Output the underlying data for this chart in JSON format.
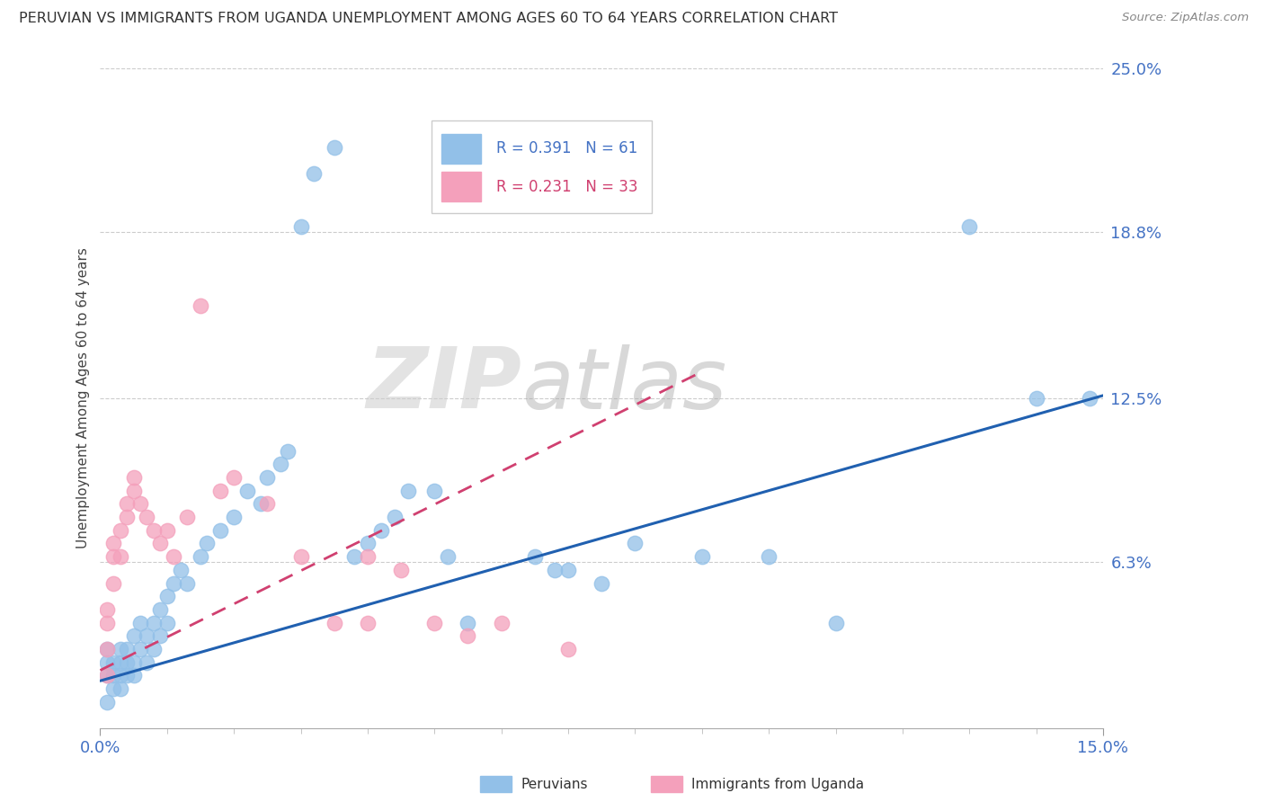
{
  "title": "PERUVIAN VS IMMIGRANTS FROM UGANDA UNEMPLOYMENT AMONG AGES 60 TO 64 YEARS CORRELATION CHART",
  "source": "Source: ZipAtlas.com",
  "ylabel": "Unemployment Among Ages 60 to 64 years",
  "xlim": [
    0,
    0.15
  ],
  "ylim": [
    0,
    0.25
  ],
  "ytick_labels_right": [
    "6.3%",
    "12.5%",
    "18.8%",
    "25.0%"
  ],
  "ytick_vals_right": [
    0.063,
    0.125,
    0.188,
    0.25
  ],
  "legend_blue_r": "R = 0.391",
  "legend_blue_n": "N = 61",
  "legend_pink_r": "R = 0.231",
  "legend_pink_n": "N = 33",
  "label_blue": "Peruvians",
  "label_pink": "Immigrants from Uganda",
  "blue_color": "#92C0E8",
  "pink_color": "#F4A0BB",
  "trend_blue_color": "#2060B0",
  "trend_pink_color": "#D04070",
  "watermark_zip": "ZIP",
  "watermark_atlas": "atlas",
  "blue_trend_x0": 0.0,
  "blue_trend_y0": 0.018,
  "blue_trend_x1": 0.15,
  "blue_trend_y1": 0.126,
  "pink_trend_x0": 0.0,
  "pink_trend_y0": 0.022,
  "pink_trend_x1": 0.09,
  "pink_trend_y1": 0.135,
  "blue_scatter_x": [
    0.001,
    0.001,
    0.001,
    0.001,
    0.002,
    0.002,
    0.002,
    0.003,
    0.003,
    0.003,
    0.003,
    0.004,
    0.004,
    0.004,
    0.005,
    0.005,
    0.005,
    0.006,
    0.006,
    0.007,
    0.007,
    0.008,
    0.008,
    0.009,
    0.009,
    0.01,
    0.01,
    0.011,
    0.012,
    0.013,
    0.015,
    0.016,
    0.018,
    0.02,
    0.022,
    0.024,
    0.025,
    0.027,
    0.028,
    0.03,
    0.032,
    0.035,
    0.038,
    0.04,
    0.042,
    0.044,
    0.046,
    0.05,
    0.052,
    0.055,
    0.065,
    0.068,
    0.07,
    0.075,
    0.08,
    0.09,
    0.1,
    0.11,
    0.13,
    0.14,
    0.148
  ],
  "blue_scatter_y": [
    0.02,
    0.025,
    0.03,
    0.01,
    0.015,
    0.025,
    0.02,
    0.03,
    0.02,
    0.025,
    0.015,
    0.03,
    0.025,
    0.02,
    0.035,
    0.025,
    0.02,
    0.04,
    0.03,
    0.035,
    0.025,
    0.04,
    0.03,
    0.045,
    0.035,
    0.04,
    0.05,
    0.055,
    0.06,
    0.055,
    0.065,
    0.07,
    0.075,
    0.08,
    0.09,
    0.085,
    0.095,
    0.1,
    0.105,
    0.19,
    0.21,
    0.22,
    0.065,
    0.07,
    0.075,
    0.08,
    0.09,
    0.09,
    0.065,
    0.04,
    0.065,
    0.06,
    0.06,
    0.055,
    0.07,
    0.065,
    0.065,
    0.04,
    0.19,
    0.125,
    0.125
  ],
  "pink_scatter_x": [
    0.001,
    0.001,
    0.001,
    0.001,
    0.002,
    0.002,
    0.002,
    0.003,
    0.003,
    0.004,
    0.004,
    0.005,
    0.005,
    0.006,
    0.007,
    0.008,
    0.009,
    0.01,
    0.011,
    0.013,
    0.015,
    0.018,
    0.02,
    0.025,
    0.03,
    0.035,
    0.04,
    0.04,
    0.045,
    0.05,
    0.055,
    0.06,
    0.07
  ],
  "pink_scatter_y": [
    0.02,
    0.03,
    0.04,
    0.045,
    0.055,
    0.065,
    0.07,
    0.075,
    0.065,
    0.08,
    0.085,
    0.09,
    0.095,
    0.085,
    0.08,
    0.075,
    0.07,
    0.075,
    0.065,
    0.08,
    0.16,
    0.09,
    0.095,
    0.085,
    0.065,
    0.04,
    0.065,
    0.04,
    0.06,
    0.04,
    0.035,
    0.04,
    0.03
  ]
}
